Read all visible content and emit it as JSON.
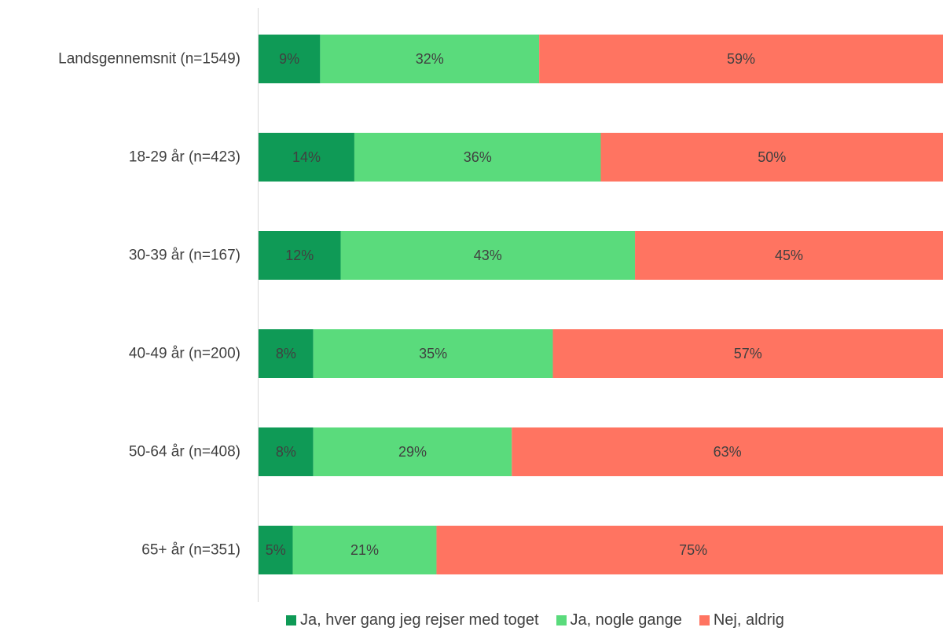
{
  "chart_data": {
    "type": "bar",
    "orientation": "horizontal",
    "stacked": true,
    "categories": [
      "Landsgennemsnit (n=1549)",
      "18-29 år (n=423)",
      "30-39 år (n=167)",
      "40-49 år (n=200)",
      "50-64 år (n=408)",
      "65+ år (n=351)"
    ],
    "series": [
      {
        "name": "Ja, hver gang jeg rejser med toget",
        "color": "#0f9a56",
        "values": [
          9,
          14,
          12,
          8,
          8,
          5
        ]
      },
      {
        "name": "Ja, nogle gange",
        "color": "#5adb7c",
        "values": [
          32,
          36,
          43,
          35,
          29,
          21
        ]
      },
      {
        "name": "Nej, aldrig",
        "color": "#ff7461",
        "values": [
          59,
          50,
          45,
          57,
          63,
          75
        ]
      }
    ],
    "value_suffix": "%",
    "xlim": [
      0,
      100
    ],
    "grid": false,
    "legend_position": "bottom",
    "title": "",
    "xlabel": "",
    "ylabel": ""
  }
}
